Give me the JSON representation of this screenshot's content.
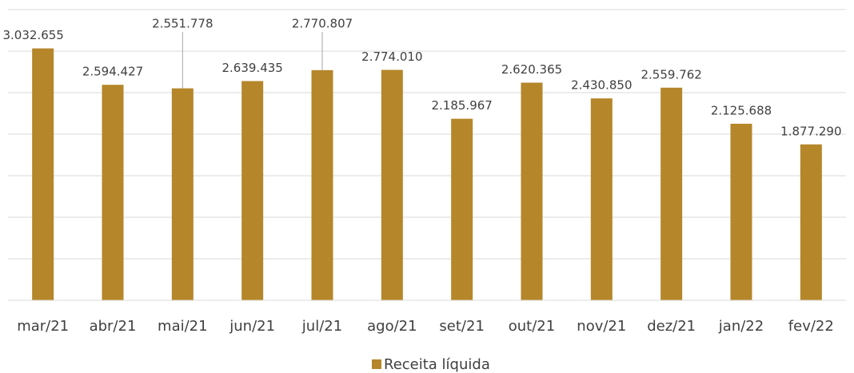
{
  "chart_data": {
    "type": "bar",
    "categories": [
      "mar/21",
      "abr/21",
      "mai/21",
      "jun/21",
      "jul/21",
      "ago/21",
      "set/21",
      "out/21",
      "nov/21",
      "dez/21",
      "jan/22",
      "fev/22"
    ],
    "series": [
      {
        "name": "Receita líquida",
        "color": "#b5862a",
        "values": [
          3032655,
          2594427,
          2551778,
          2639435,
          2770807,
          2774010,
          2185967,
          2620365,
          2430850,
          2559762,
          2125688,
          1877290
        ],
        "value_labels": [
          "3.032.655",
          "2.594.427",
          "2.551.778",
          "2.639.435",
          "2.770.807",
          "2.774.010",
          "2.185.967",
          "2.620.365",
          "2.430.850",
          "2.559.762",
          "2.125.688",
          "1.877.290"
        ]
      }
    ],
    "ylim": [
      0,
      3500000
    ],
    "yticks": [
      0,
      500000,
      1000000,
      1500000,
      2000000,
      2500000,
      3000000,
      3500000
    ],
    "grid": true,
    "legend": "bottom"
  }
}
